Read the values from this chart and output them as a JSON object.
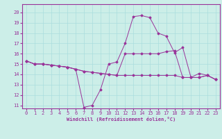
{
  "xlabel": "Windchill (Refroidissement éolien,°C)",
  "bg_color": "#cceee8",
  "line_color": "#993399",
  "grid_color": "#aadddd",
  "xlim": [
    -0.5,
    23.5
  ],
  "ylim": [
    10.7,
    20.8
  ],
  "yticks": [
    11,
    12,
    13,
    14,
    15,
    16,
    17,
    18,
    19,
    20
  ],
  "xticks": [
    0,
    1,
    2,
    3,
    4,
    5,
    6,
    7,
    8,
    9,
    10,
    11,
    12,
    13,
    14,
    15,
    16,
    17,
    18,
    19,
    20,
    21,
    22,
    23
  ],
  "series": [
    [
      15.3,
      15.0,
      15.0,
      14.9,
      14.8,
      14.7,
      14.5,
      10.8,
      11.0,
      12.5,
      15.0,
      15.2,
      17.0,
      19.6,
      19.7,
      19.5,
      18.0,
      17.7,
      16.1,
      16.6,
      13.7,
      13.7,
      13.9,
      13.5
    ],
    [
      15.3,
      15.0,
      15.0,
      14.9,
      14.8,
      14.7,
      14.5,
      14.3,
      14.2,
      14.1,
      14.0,
      13.9,
      16.0,
      16.0,
      16.0,
      16.0,
      16.0,
      16.2,
      16.3,
      13.7,
      13.7,
      13.7,
      13.9,
      13.5
    ],
    [
      15.3,
      15.0,
      15.0,
      14.9,
      14.8,
      14.7,
      14.5,
      14.3,
      14.2,
      14.1,
      14.0,
      13.9,
      13.9,
      13.9,
      13.9,
      13.9,
      13.9,
      13.9,
      13.9,
      13.7,
      13.7,
      14.1,
      13.9,
      13.5
    ]
  ]
}
